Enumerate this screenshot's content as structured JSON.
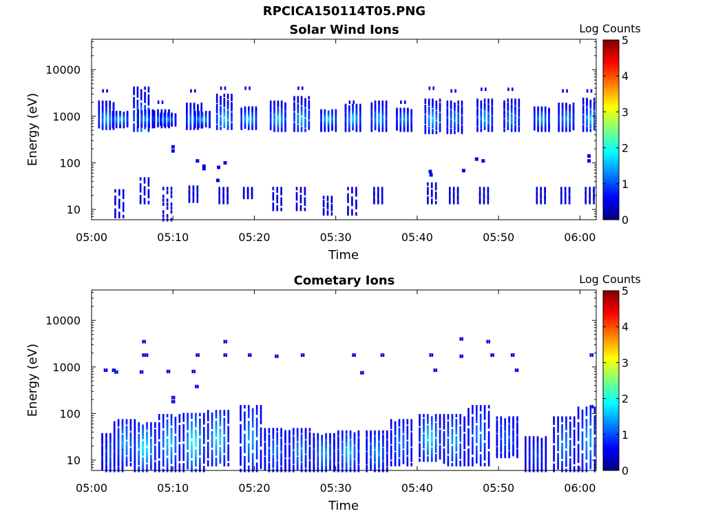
{
  "title": "RPCICA150114T05.PNG",
  "chart_data": [
    {
      "type": "heatmap",
      "title": "Solar Wind Ions",
      "xlabel": "Time",
      "ylabel": "Energy (eV)",
      "y_scale": "log",
      "ylim": [
        6,
        45000
      ],
      "xlim_minutes": [
        0,
        62
      ],
      "x_ticks": [
        "05:00",
        "05:10",
        "05:20",
        "05:30",
        "05:40",
        "05:50",
        "06:00"
      ],
      "y_ticks": [
        "10",
        "100",
        "1000",
        "10000"
      ],
      "colorbar": {
        "label": "Log Counts",
        "ticks": [
          "0",
          "1",
          "2",
          "3",
          "4",
          "5"
        ],
        "range": [
          0,
          5
        ]
      },
      "clusters": [
        {
          "t": 1.7,
          "elow": 550,
          "ehigh": 2000,
          "peak": 1.6,
          "low": [],
          "top": [
            3500
          ]
        },
        {
          "t": 3.4,
          "elow": 600,
          "ehigh": 1200,
          "peak": 1.8,
          "low": [
            7,
            25
          ],
          "top": []
        },
        {
          "t": 6.0,
          "elow": 500,
          "ehigh": 4000,
          "peak": 2.0,
          "low": [],
          "top": []
        },
        {
          "t": 6.5,
          "elow": 600,
          "ehigh": 1300,
          "peak": 1.4,
          "low": [
            14,
            45
          ],
          "top": []
        },
        {
          "t": 8.5,
          "elow": 600,
          "ehigh": 1300,
          "peak": 1.6,
          "low": [],
          "top": [
            2000
          ]
        },
        {
          "t": 9.3,
          "elow": 650,
          "ehigh": 1100,
          "peak": 1.5,
          "low": [
            6,
            28
          ],
          "top": []
        },
        {
          "t": 12.5,
          "elow": 550,
          "ehigh": 1800,
          "peak": 1.6,
          "low": [
            15,
            30
          ],
          "top": [
            3500
          ]
        },
        {
          "t": 13.5,
          "elow": 600,
          "ehigh": 1200,
          "peak": 1.7,
          "low": [],
          "top": []
        },
        {
          "t": 16.2,
          "elow": 550,
          "ehigh": 2800,
          "peak": 1.8,
          "low": [
            14,
            28
          ],
          "top": [
            4000
          ]
        },
        {
          "t": 19.2,
          "elow": 550,
          "ehigh": 1500,
          "peak": 1.9,
          "low": [
            18,
            28
          ],
          "top": [
            4000
          ]
        },
        {
          "t": 22.8,
          "elow": 500,
          "ehigh": 2000,
          "peak": 1.8,
          "low": [
            10,
            28
          ],
          "top": []
        },
        {
          "t": 25.7,
          "elow": 500,
          "ehigh": 2500,
          "peak": 1.7,
          "low": [
            10,
            28
          ],
          "top": [
            4000
          ]
        },
        {
          "t": 29.0,
          "elow": 500,
          "ehigh": 1300,
          "peak": 1.8,
          "low": [
            8,
            18
          ],
          "top": []
        },
        {
          "t": 32.0,
          "elow": 500,
          "ehigh": 1700,
          "peak": 1.8,
          "low": [
            8,
            28
          ],
          "top": [
            2000
          ]
        },
        {
          "t": 35.2,
          "elow": 500,
          "ehigh": 2000,
          "peak": 1.6,
          "low": [
            14,
            28
          ],
          "top": []
        },
        {
          "t": 38.3,
          "elow": 500,
          "ehigh": 1400,
          "peak": 1.5,
          "low": [],
          "top": [
            2000
          ]
        },
        {
          "t": 41.8,
          "elow": 450,
          "ehigh": 2200,
          "peak": 1.7,
          "low": [
            14,
            35
          ],
          "top": [
            4000
          ]
        },
        {
          "t": 44.5,
          "elow": 450,
          "ehigh": 2000,
          "peak": 1.4,
          "low": [
            14,
            28
          ],
          "top": [
            3500
          ]
        },
        {
          "t": 48.2,
          "elow": 500,
          "ehigh": 2200,
          "peak": 1.6,
          "low": [
            14,
            28
          ],
          "top": [
            3800
          ]
        },
        {
          "t": 51.5,
          "elow": 500,
          "ehigh": 2200,
          "peak": 1.4,
          "low": [],
          "top": [
            3800
          ]
        },
        {
          "t": 55.2,
          "elow": 500,
          "ehigh": 1500,
          "peak": 1.6,
          "low": [
            14,
            28
          ],
          "top": []
        },
        {
          "t": 58.2,
          "elow": 500,
          "ehigh": 1800,
          "peak": 1.5,
          "low": [
            14,
            28
          ],
          "top": [
            3500
          ]
        },
        {
          "t": 61.2,
          "elow": 500,
          "ehigh": 2300,
          "peak": 1.7,
          "low": [
            14,
            28
          ],
          "top": [
            3500
          ]
        }
      ],
      "isolated": [
        {
          "t": 9.8,
          "e": 220
        },
        {
          "t": 9.8,
          "e": 180
        },
        {
          "t": 12.8,
          "e": 110
        },
        {
          "t": 13.6,
          "e": 85
        },
        {
          "t": 13.6,
          "e": 75
        },
        {
          "t": 15.4,
          "e": 80
        },
        {
          "t": 15.3,
          "e": 42
        },
        {
          "t": 16.2,
          "e": 100
        },
        {
          "t": 41.4,
          "e": 65
        },
        {
          "t": 41.5,
          "e": 55
        },
        {
          "t": 45.5,
          "e": 68
        },
        {
          "t": 47.1,
          "e": 120
        },
        {
          "t": 47.9,
          "e": 110
        },
        {
          "t": 60.9,
          "e": 140
        },
        {
          "t": 60.9,
          "e": 110
        }
      ]
    },
    {
      "type": "heatmap",
      "title": "Cometary Ions",
      "xlabel": "Time",
      "ylabel": "Energy (eV)",
      "y_scale": "log",
      "ylim": [
        6,
        45000
      ],
      "xlim_minutes": [
        0,
        62
      ],
      "x_ticks": [
        "05:00",
        "05:10",
        "05:20",
        "05:30",
        "05:40",
        "05:50",
        "06:00"
      ],
      "y_ticks": [
        "10",
        "100",
        "1000",
        "10000"
      ],
      "colorbar": {
        "label": "Log Counts",
        "ticks": [
          "0",
          "1",
          "2",
          "3",
          "4",
          "5"
        ],
        "range": [
          0,
          5
        ]
      },
      "columns": [
        {
          "t": 2.5,
          "elow": 6,
          "ehigh": 35,
          "peak": 1.2
        },
        {
          "t": 4.0,
          "elow": 8,
          "ehigh": 70,
          "peak": 1.6
        },
        {
          "t": 6.5,
          "elow": 6,
          "ehigh": 60,
          "peak": 2.1
        },
        {
          "t": 9.5,
          "elow": 6,
          "ehigh": 90,
          "peak": 1.8
        },
        {
          "t": 12.5,
          "elow": 6,
          "ehigh": 95,
          "peak": 2.2
        },
        {
          "t": 15.5,
          "elow": 8,
          "ehigh": 110,
          "peak": 2.0
        },
        {
          "t": 19.5,
          "elow": 6,
          "ehigh": 140,
          "peak": 1.6
        },
        {
          "t": 22.5,
          "elow": 6,
          "ehigh": 45,
          "peak": 1.3
        },
        {
          "t": 25.5,
          "elow": 6,
          "ehigh": 45,
          "peak": 1.4
        },
        {
          "t": 28.5,
          "elow": 6,
          "ehigh": 35,
          "peak": 1.6
        },
        {
          "t": 31.5,
          "elow": 6,
          "ehigh": 40,
          "peak": 1.8
        },
        {
          "t": 35.0,
          "elow": 6,
          "ehigh": 40,
          "peak": 1.5
        },
        {
          "t": 38.0,
          "elow": 8,
          "ehigh": 70,
          "peak": 1.3
        },
        {
          "t": 41.5,
          "elow": 10,
          "ehigh": 90,
          "peak": 2.0
        },
        {
          "t": 44.5,
          "elow": 8,
          "ehigh": 90,
          "peak": 1.6
        },
        {
          "t": 47.5,
          "elow": 8,
          "ehigh": 140,
          "peak": 1.4
        },
        {
          "t": 51.0,
          "elow": 12,
          "ehigh": 80,
          "peak": 1.2
        },
        {
          "t": 54.5,
          "elow": 6,
          "ehigh": 30,
          "peak": 1.0
        },
        {
          "t": 58.0,
          "elow": 6,
          "ehigh": 80,
          "peak": 1.4
        },
        {
          "t": 61.0,
          "elow": 6,
          "ehigh": 130,
          "peak": 1.6
        }
      ],
      "isolated": [
        {
          "t": 1.5,
          "e": 850
        },
        {
          "t": 2.5,
          "e": 850
        },
        {
          "t": 2.8,
          "e": 780
        },
        {
          "t": 6.2,
          "e": 3500
        },
        {
          "t": 6.2,
          "e": 1800
        },
        {
          "t": 6.5,
          "e": 1800
        },
        {
          "t": 5.9,
          "e": 780
        },
        {
          "t": 9.2,
          "e": 800
        },
        {
          "t": 9.8,
          "e": 220
        },
        {
          "t": 9.8,
          "e": 180
        },
        {
          "t": 12.3,
          "e": 800
        },
        {
          "t": 12.7,
          "e": 380
        },
        {
          "t": 12.8,
          "e": 1800
        },
        {
          "t": 16.2,
          "e": 3500
        },
        {
          "t": 16.2,
          "e": 1800
        },
        {
          "t": 19.2,
          "e": 1800
        },
        {
          "t": 22.5,
          "e": 1700
        },
        {
          "t": 25.7,
          "e": 1800
        },
        {
          "t": 32.0,
          "e": 1800
        },
        {
          "t": 33.0,
          "e": 750
        },
        {
          "t": 35.5,
          "e": 1800
        },
        {
          "t": 41.5,
          "e": 1800
        },
        {
          "t": 42.0,
          "e": 850
        },
        {
          "t": 45.2,
          "e": 4000
        },
        {
          "t": 45.2,
          "e": 1700
        },
        {
          "t": 48.5,
          "e": 3500
        },
        {
          "t": 49.0,
          "e": 1800
        },
        {
          "t": 51.5,
          "e": 1800
        },
        {
          "t": 52.0,
          "e": 850
        },
        {
          "t": 61.2,
          "e": 1800
        },
        {
          "t": 61.2,
          "e": 140
        }
      ]
    }
  ]
}
